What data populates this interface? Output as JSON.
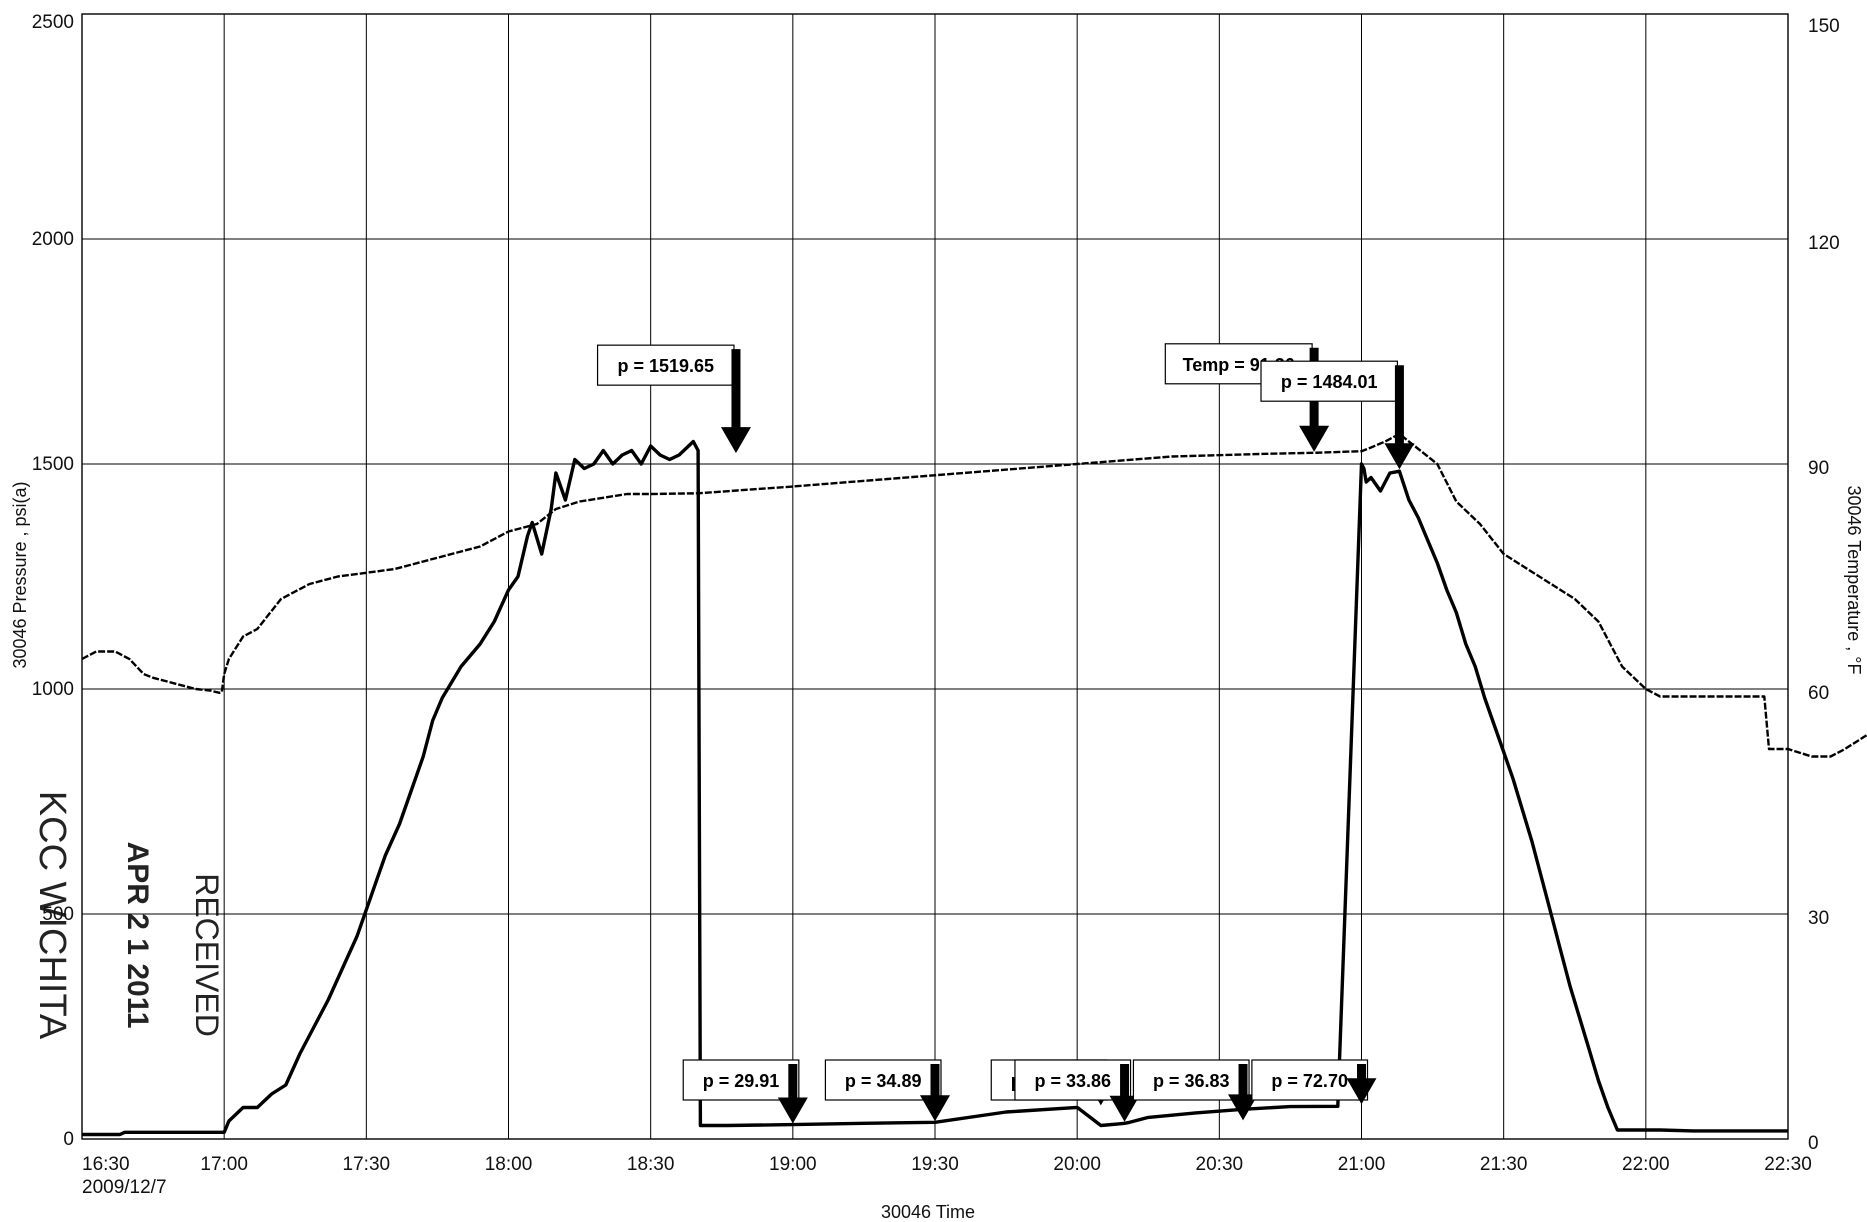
{
  "chart_data": {
    "type": "line",
    "title": "",
    "xlabel": "30046 Time",
    "ylabel": "30046 Pressure , psi(a)",
    "y2label": "30046 Temperature , °F",
    "x_start_label": "2009/12/7",
    "x_ticks": [
      "16:30",
      "17:00",
      "17:30",
      "18:00",
      "18:30",
      "19:00",
      "19:30",
      "20:00",
      "20:30",
      "21:00",
      "21:30",
      "22:00",
      "22:30"
    ],
    "y_ticks": [
      "0",
      "500",
      "1000",
      "1500",
      "2000",
      "2500"
    ],
    "y2_ticks": [
      "0",
      "30",
      "60",
      "90",
      "120",
      "150"
    ],
    "xlim_minutes_after_1630": [
      0,
      360
    ],
    "ylim": [
      0,
      2500
    ],
    "y2lim": [
      0,
      150
    ],
    "grid": true,
    "legend": "none",
    "series": [
      {
        "name": "",
        "axis": "left",
        "color": "#000000",
        "x_minutes": [
          0,
          8,
          9,
          16,
          25,
          28,
          30,
          31,
          34,
          37,
          40,
          43,
          46,
          49,
          52,
          55,
          58,
          61,
          64,
          67,
          69,
          72,
          74,
          76,
          80,
          84,
          87,
          90,
          92,
          94,
          95,
          97,
          99,
          100,
          102,
          104,
          106,
          108,
          110,
          112,
          114,
          116,
          118,
          120,
          122,
          124,
          126,
          128,
          129,
          130,
          130.5,
          136,
          150,
          165,
          180,
          195,
          210,
          215,
          219,
          220,
          221,
          225,
          235,
          245,
          255,
          265,
          270,
          270.5,
          271,
          272,
          274,
          276,
          278,
          280,
          282,
          284,
          286,
          288,
          290,
          292,
          294,
          296,
          298,
          300,
          302,
          304,
          306,
          308,
          310,
          312,
          314,
          316,
          318,
          320,
          322,
          324,
          326,
          328,
          330,
          333,
          340,
          350,
          360
        ],
        "y_values": [
          10,
          10,
          15,
          15,
          15,
          15,
          15,
          40,
          70,
          70,
          100,
          120,
          190,
          250,
          310,
          380,
          450,
          540,
          630,
          700,
          760,
          850,
          930,
          980,
          1050,
          1100,
          1150,
          1220,
          1250,
          1340,
          1370,
          1300,
          1400,
          1480,
          1420,
          1510,
          1490,
          1500,
          1530,
          1500,
          1520,
          1530,
          1500,
          1540,
          1520,
          1510,
          1520,
          1540,
          1550,
          1530,
          30,
          29.91,
          32,
          34.89,
          37,
          60,
          70.22,
          30,
          33.86,
          35,
          36.83,
          48,
          58,
          66,
          72,
          72.7,
          1500,
          1490,
          1460,
          1470,
          1440,
          1480,
          1484.01,
          1420,
          1380,
          1330,
          1280,
          1220,
          1170,
          1100,
          1050,
          980,
          920,
          860,
          800,
          730,
          660,
          580,
          500,
          420,
          340,
          270,
          200,
          130,
          70,
          20,
          20,
          20,
          20,
          20,
          18,
          18,
          18
        ]
      },
      {
        "name": "",
        "axis": "right",
        "color": "#000000",
        "x_minutes": [
          0,
          3,
          7,
          10,
          13,
          15,
          18,
          21,
          24,
          27,
          29,
          29.5,
          30,
          31,
          34,
          37,
          42,
          48,
          54,
          60,
          66,
          72,
          78,
          84,
          90,
          96,
          100,
          105,
          110,
          115,
          120,
          130,
          150,
          170,
          190,
          210,
          230,
          250,
          260,
          270,
          272,
          275,
          278,
          282,
          286,
          290,
          295,
          300,
          305,
          310,
          315,
          320,
          325,
          330,
          333,
          336,
          340,
          350,
          355,
          356,
          360,
          365,
          369,
          372,
          377,
          380,
          383
        ],
        "y_values": [
          64,
          65,
          65,
          64,
          62,
          61.5,
          61,
          60.5,
          60,
          59.8,
          59.5,
          59.6,
          62,
          64,
          67,
          68,
          72,
          74,
          75,
          75.5,
          76,
          77,
          78,
          79,
          81,
          82,
          84,
          85,
          85.5,
          86,
          86,
          86.1,
          87,
          88,
          89,
          90,
          91,
          91.36,
          91.5,
          91.7,
          92.2,
          93,
          94,
          92,
          90,
          85,
          82,
          78,
          76,
          74,
          72,
          69,
          63,
          60,
          59,
          59,
          59,
          59,
          59,
          52,
          52,
          51,
          51,
          52,
          54,
          56,
          55
        ]
      }
    ],
    "annotations": [
      {
        "label": "p = 1519.65",
        "x_minutes": 138,
        "value": 1519.65,
        "axis": "left"
      },
      {
        "label": "p = 29.91",
        "x_minutes": 150,
        "value": 29.91,
        "axis": "left"
      },
      {
        "label": "p = 34.89",
        "x_minutes": 180,
        "value": 34.89,
        "axis": "left"
      },
      {
        "label": "p = 70.22",
        "x_minutes": 215,
        "value": 70.22,
        "axis": "left"
      },
      {
        "label": "p = 33.86",
        "x_minutes": 220,
        "value": 33.86,
        "axis": "left"
      },
      {
        "label": "p = 36.83",
        "x_minutes": 245,
        "value": 36.83,
        "axis": "left"
      },
      {
        "label": "Temp = 91.36",
        "x_minutes": 260,
        "value": 91.36,
        "axis": "right"
      },
      {
        "label": "p = 72.70",
        "x_minutes": 270,
        "value": 72.7,
        "axis": "left"
      },
      {
        "label": "p = 1484.01",
        "x_minutes": 278,
        "value": 1484.01,
        "axis": "left"
      }
    ]
  },
  "stamp": {
    "line1": "RECEIVED",
    "line2": "APR 2 1 2011",
    "line3": "KCC WICHITA"
  }
}
